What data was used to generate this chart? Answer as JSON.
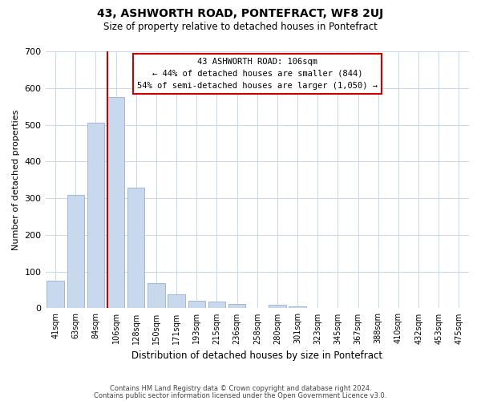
{
  "title": "43, ASHWORTH ROAD, PONTEFRACT, WF8 2UJ",
  "subtitle": "Size of property relative to detached houses in Pontefract",
  "xlabel": "Distribution of detached houses by size in Pontefract",
  "ylabel": "Number of detached properties",
  "bar_labels": [
    "41sqm",
    "63sqm",
    "84sqm",
    "106sqm",
    "128sqm",
    "150sqm",
    "171sqm",
    "193sqm",
    "215sqm",
    "236sqm",
    "258sqm",
    "280sqm",
    "301sqm",
    "323sqm",
    "345sqm",
    "367sqm",
    "388sqm",
    "410sqm",
    "432sqm",
    "453sqm",
    "475sqm"
  ],
  "bar_values": [
    75,
    310,
    505,
    575,
    328,
    68,
    38,
    20,
    18,
    12,
    0,
    10,
    6,
    0,
    0,
    0,
    0,
    0,
    0,
    0,
    0
  ],
  "bar_color": "#c9d9ed",
  "bar_edge_color": "#a0b8d8",
  "vline_color": "#cc0000",
  "vline_index": 3,
  "annotation_line1": "43 ASHWORTH ROAD: 106sqm",
  "annotation_line2": "← 44% of detached houses are smaller (844)",
  "annotation_line3": "54% of semi-detached houses are larger (1,050) →",
  "annotation_box_edgecolor": "#cc0000",
  "ylim": [
    0,
    700
  ],
  "yticks": [
    0,
    100,
    200,
    300,
    400,
    500,
    600,
    700
  ],
  "footer_line1": "Contains HM Land Registry data © Crown copyright and database right 2024.",
  "footer_line2": "Contains public sector information licensed under the Open Government Licence v3.0.",
  "bg_color": "#ffffff",
  "grid_color": "#c8d8e8"
}
